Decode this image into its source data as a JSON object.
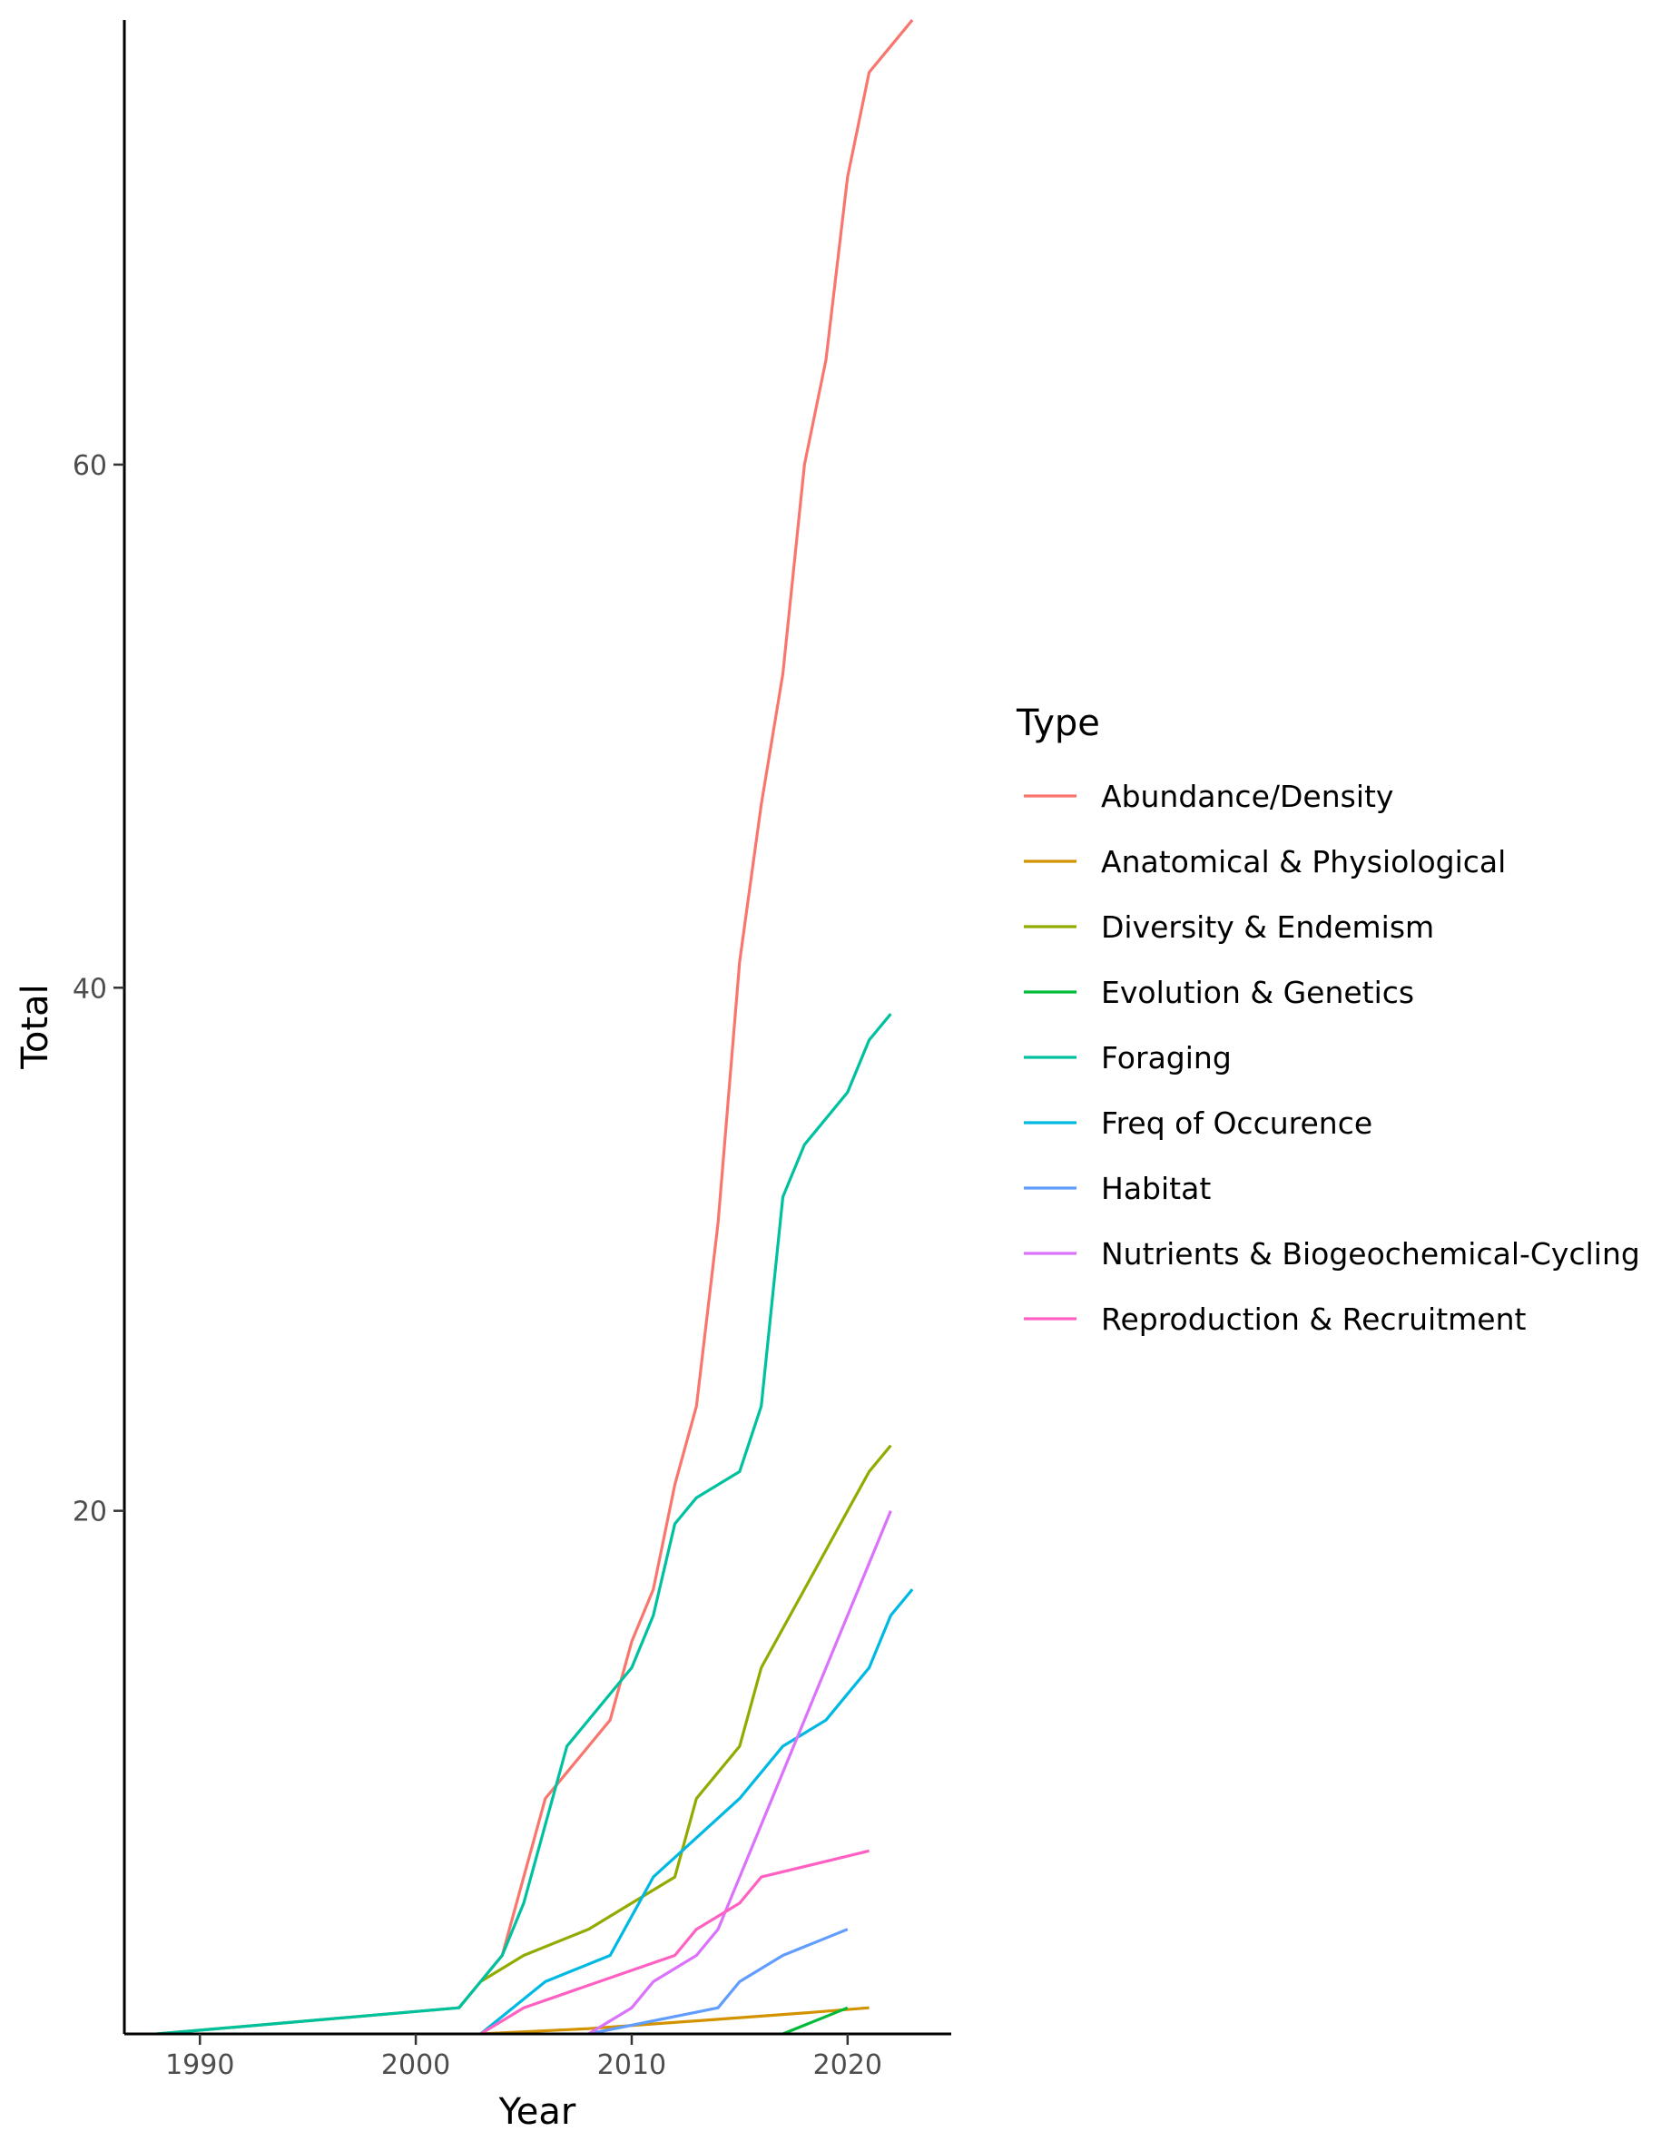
{
  "chart_data": {
    "type": "line",
    "xlabel": "Year",
    "ylabel": "Total",
    "xlim": [
      1986.5,
      2024.8
    ],
    "ylim": [
      0,
      77
    ],
    "x_ticks": [
      1990,
      2000,
      2010,
      2020
    ],
    "y_ticks": [
      20,
      40,
      60
    ],
    "grid": false,
    "legend": {
      "title": "Type",
      "position": "right"
    },
    "series": [
      {
        "name": "Abundance/Density",
        "color": "#F8766D",
        "points": [
          [
            2002,
            1
          ],
          [
            2003,
            2
          ],
          [
            2004,
            3
          ],
          [
            2005,
            6
          ],
          [
            2006,
            9
          ],
          [
            2007,
            10
          ],
          [
            2008,
            11
          ],
          [
            2009,
            12
          ],
          [
            2010,
            15
          ],
          [
            2011,
            17
          ],
          [
            2012,
            21
          ],
          [
            2013,
            24
          ],
          [
            2014,
            31
          ],
          [
            2015,
            41
          ],
          [
            2016,
            47
          ],
          [
            2017,
            52
          ],
          [
            2018,
            60
          ],
          [
            2019,
            64
          ],
          [
            2020,
            71
          ],
          [
            2021,
            75
          ],
          [
            2022,
            76
          ],
          [
            2023,
            77
          ]
        ]
      },
      {
        "name": "Anatomical & Physiological",
        "color": "#D39200",
        "points": [
          [
            2003,
            0
          ],
          [
            2008,
            0.2
          ],
          [
            2013,
            0.5
          ],
          [
            2018,
            0.8
          ],
          [
            2021,
            1
          ]
        ]
      },
      {
        "name": "Diversity & Endemism",
        "color": "#93AA00",
        "points": [
          [
            1988,
            0
          ],
          [
            2002,
            1
          ],
          [
            2003,
            2
          ],
          [
            2005,
            3
          ],
          [
            2008,
            4
          ],
          [
            2010,
            5
          ],
          [
            2012,
            6
          ],
          [
            2013,
            9
          ],
          [
            2015,
            11
          ],
          [
            2016,
            14
          ],
          [
            2018,
            17
          ],
          [
            2020,
            20
          ],
          [
            2021,
            21.5
          ],
          [
            2022,
            22.5
          ]
        ]
      },
      {
        "name": "Evolution & Genetics",
        "color": "#00BA38",
        "points": [
          [
            2017,
            0
          ],
          [
            2020,
            1
          ]
        ]
      },
      {
        "name": "Foraging",
        "color": "#00C19F",
        "points": [
          [
            1988,
            0
          ],
          [
            2002,
            1
          ],
          [
            2004,
            3
          ],
          [
            2005,
            5
          ],
          [
            2007,
            11
          ],
          [
            2010,
            14
          ],
          [
            2011,
            16
          ],
          [
            2012,
            19.5
          ],
          [
            2013,
            20.5
          ],
          [
            2015,
            21.5
          ],
          [
            2016,
            24
          ],
          [
            2017,
            32
          ],
          [
            2018,
            34
          ],
          [
            2020,
            36
          ],
          [
            2021,
            38
          ],
          [
            2022,
            39
          ]
        ]
      },
      {
        "name": "Freq of Occurence",
        "color": "#00B9E3",
        "points": [
          [
            2003,
            0
          ],
          [
            2006,
            2
          ],
          [
            2009,
            3
          ],
          [
            2011,
            6
          ],
          [
            2015,
            9
          ],
          [
            2017,
            11
          ],
          [
            2019,
            12
          ],
          [
            2021,
            14
          ],
          [
            2022,
            16
          ],
          [
            2023,
            17
          ]
        ]
      },
      {
        "name": "Habitat",
        "color": "#619CFF",
        "points": [
          [
            2008,
            0
          ],
          [
            2014,
            1
          ],
          [
            2015,
            2
          ],
          [
            2017,
            3
          ],
          [
            2020,
            4
          ]
        ]
      },
      {
        "name": "Nutrients & Biogeochemical-Cycling",
        "color": "#DB72FB",
        "points": [
          [
            2008,
            0
          ],
          [
            2010,
            1
          ],
          [
            2011,
            2
          ],
          [
            2013,
            3
          ],
          [
            2014,
            4
          ],
          [
            2016,
            8
          ],
          [
            2022,
            20
          ]
        ]
      },
      {
        "name": "Reproduction & Recruitment",
        "color": "#FF61C3",
        "points": [
          [
            2003,
            0
          ],
          [
            2005,
            1
          ],
          [
            2012,
            3
          ],
          [
            2013,
            4
          ],
          [
            2015,
            5
          ],
          [
            2016,
            6
          ],
          [
            2021,
            7
          ]
        ]
      }
    ]
  }
}
